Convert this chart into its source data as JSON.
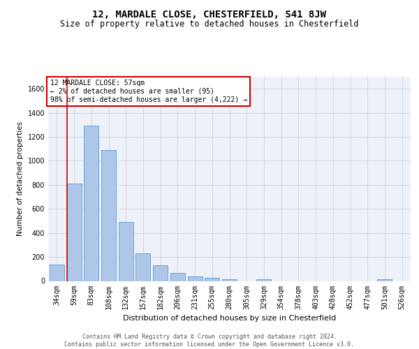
{
  "title1": "12, MARDALE CLOSE, CHESTERFIELD, S41 8JW",
  "title2": "Size of property relative to detached houses in Chesterfield",
  "xlabel": "Distribution of detached houses by size in Chesterfield",
  "ylabel": "Number of detached properties",
  "bar_labels": [
    "34sqm",
    "59sqm",
    "83sqm",
    "108sqm",
    "132sqm",
    "157sqm",
    "182sqm",
    "206sqm",
    "231sqm",
    "255sqm",
    "280sqm",
    "305sqm",
    "329sqm",
    "354sqm",
    "378sqm",
    "403sqm",
    "428sqm",
    "452sqm",
    "477sqm",
    "501sqm",
    "526sqm"
  ],
  "bar_values": [
    135,
    810,
    1295,
    1090,
    490,
    232,
    130,
    67,
    38,
    27,
    15,
    0,
    15,
    0,
    0,
    0,
    0,
    0,
    0,
    15,
    0
  ],
  "bar_color": "#aec6e8",
  "bar_edge_color": "#5b9bd5",
  "highlight_bar_index": 1,
  "highlight_color": "#cc0000",
  "annotation_text": "12 MARDALE CLOSE: 57sqm\n← 2% of detached houses are smaller (95)\n98% of semi-detached houses are larger (4,222) →",
  "annotation_box_color": "#cc0000",
  "ylim": [
    0,
    1700
  ],
  "yticks": [
    0,
    200,
    400,
    600,
    800,
    1000,
    1200,
    1400,
    1600
  ],
  "grid_color": "#d0d8e8",
  "background_color": "#eef2f8",
  "footer_text": "Contains HM Land Registry data © Crown copyright and database right 2024.\nContains public sector information licensed under the Open Government Licence v3.0.",
  "title1_fontsize": 10,
  "title2_fontsize": 8.5,
  "xlabel_fontsize": 8,
  "ylabel_fontsize": 7.5,
  "tick_fontsize": 7,
  "annotation_fontsize": 7,
  "footer_fontsize": 6
}
